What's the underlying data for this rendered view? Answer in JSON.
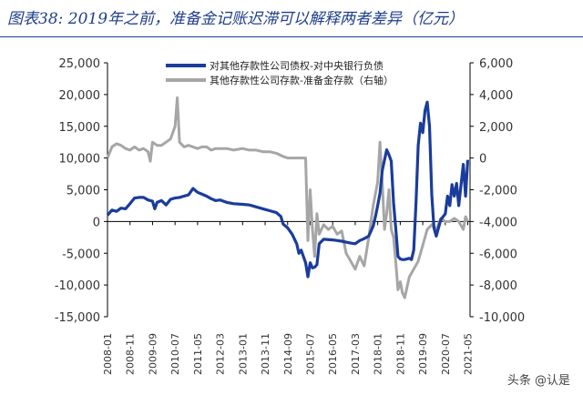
{
  "title": "图表38: 2019年之前，准备金记账迟滞可以解释两者差异（亿元）",
  "watermark": "头条 @认是",
  "chart_data": {
    "type": "line",
    "title": "图表38: 2019年之前，准备金记账迟滞可以解释两者差异（亿元）",
    "x_ticks": [
      "2008-01",
      "2008-11",
      "2009-09",
      "2010-07",
      "2011-05",
      "2012-03",
      "2013-01",
      "2013-11",
      "2014-09",
      "2015-07",
      "2016-05",
      "2017-03",
      "2018-01",
      "2018-11",
      "2019-09",
      "2020-07",
      "2021-05"
    ],
    "y_left": {
      "ticks": [
        "25,000",
        "20,000",
        "15,000",
        "10,000",
        "5,000",
        "0",
        "-5,000",
        "-10,000",
        "-15,000"
      ],
      "ylim": [
        -15000,
        25000
      ]
    },
    "y_right": {
      "ticks": [
        "6,000",
        "4,000",
        "2,000",
        "0",
        "-2,000",
        "-4,000",
        "-6,000",
        "-8,000",
        "-10,000"
      ],
      "ylim": [
        -10000,
        6000
      ]
    },
    "legend_position": "top-center",
    "grid": false,
    "series": [
      {
        "name": "对其他存款性公司债权-对中央银行负债",
        "axis": "left",
        "color": "#1a3c9c",
        "points": [
          [
            "2008-01",
            1000
          ],
          [
            "2008-03",
            1800
          ],
          [
            "2008-05",
            1600
          ],
          [
            "2008-07",
            2100
          ],
          [
            "2008-09",
            2000
          ],
          [
            "2008-11",
            2800
          ],
          [
            "2009-01",
            3700
          ],
          [
            "2009-03",
            3800
          ],
          [
            "2009-05",
            3800
          ],
          [
            "2009-07",
            3400
          ],
          [
            "2009-09",
            3200
          ],
          [
            "2009-10",
            2000
          ],
          [
            "2009-11",
            3000
          ],
          [
            "2010-01",
            3300
          ],
          [
            "2010-03",
            2600
          ],
          [
            "2010-05",
            3500
          ],
          [
            "2010-07",
            3700
          ],
          [
            "2010-09",
            3800
          ],
          [
            "2010-11",
            4000
          ],
          [
            "2011-01",
            4200
          ],
          [
            "2011-03",
            5200
          ],
          [
            "2011-05",
            4600
          ],
          [
            "2011-07",
            4300
          ],
          [
            "2011-09",
            4000
          ],
          [
            "2011-11",
            3600
          ],
          [
            "2012-01",
            3300
          ],
          [
            "2012-03",
            3400
          ],
          [
            "2012-06",
            3000
          ],
          [
            "2012-09",
            2800
          ],
          [
            "2013-01",
            2700
          ],
          [
            "2013-04",
            2600
          ],
          [
            "2013-07",
            2300
          ],
          [
            "2013-10",
            2000
          ],
          [
            "2014-01",
            1700
          ],
          [
            "2014-04",
            1400
          ],
          [
            "2014-06",
            800
          ],
          [
            "2014-07",
            -400
          ],
          [
            "2014-09",
            -1000
          ],
          [
            "2014-11",
            -2000
          ],
          [
            "2015-01",
            -3500
          ],
          [
            "2015-02",
            -5000
          ],
          [
            "2015-03",
            -4500
          ],
          [
            "2015-05",
            -6500
          ],
          [
            "2015-06",
            -8700
          ],
          [
            "2015-07",
            -6500
          ],
          [
            "2015-08",
            -7300
          ],
          [
            "2015-09",
            -7200
          ],
          [
            "2015-10",
            -6800
          ],
          [
            "2015-11",
            -3500
          ],
          [
            "2016-01",
            -2800
          ],
          [
            "2016-05",
            -2900
          ],
          [
            "2016-09",
            -3100
          ],
          [
            "2017-01",
            -3400
          ],
          [
            "2017-03",
            -3500
          ],
          [
            "2017-05",
            -3000
          ],
          [
            "2017-07",
            -2700
          ],
          [
            "2017-09",
            -2300
          ],
          [
            "2017-11",
            -700
          ],
          [
            "2017-12",
            800
          ],
          [
            "2018-01",
            2500
          ],
          [
            "2018-02",
            4400
          ],
          [
            "2018-03",
            8000
          ],
          [
            "2018-05",
            11300
          ],
          [
            "2018-06",
            10500
          ],
          [
            "2018-07",
            9500
          ],
          [
            "2018-08",
            3000
          ],
          [
            "2018-09",
            -1000
          ],
          [
            "2018-10",
            -5500
          ],
          [
            "2018-11",
            -5900
          ],
          [
            "2018-12",
            -6000
          ],
          [
            "2019-01",
            -6000
          ],
          [
            "2019-03",
            -5800
          ],
          [
            "2019-04",
            -6000
          ],
          [
            "2019-05",
            -4500
          ],
          [
            "2019-06",
            3000
          ],
          [
            "2019-07",
            12000
          ],
          [
            "2019-08",
            15500
          ],
          [
            "2019-09",
            14000
          ],
          [
            "2019-10",
            17500
          ],
          [
            "2019-11",
            18800
          ],
          [
            "2019-12",
            15000
          ],
          [
            "2020-01",
            4200
          ],
          [
            "2020-02",
            -1000
          ],
          [
            "2020-03",
            -2300
          ],
          [
            "2020-05",
            300
          ],
          [
            "2020-07",
            1200
          ],
          [
            "2020-08",
            4000
          ],
          [
            "2020-09",
            2500
          ],
          [
            "2020-10",
            5800
          ],
          [
            "2020-11",
            4000
          ],
          [
            "2020-12",
            6000
          ],
          [
            "2021-01",
            2500
          ],
          [
            "2021-03",
            9000
          ],
          [
            "2021-04",
            4000
          ],
          [
            "2021-05",
            9700
          ]
        ]
      },
      {
        "name": "其他存款性公司存款-准备金存款（右轴）",
        "axis": "right",
        "color": "#a6a6a6",
        "points": [
          [
            "2008-01",
            0
          ],
          [
            "2008-03",
            700
          ],
          [
            "2008-05",
            900
          ],
          [
            "2008-07",
            800
          ],
          [
            "2008-09",
            600
          ],
          [
            "2008-11",
            500
          ],
          [
            "2009-01",
            700
          ],
          [
            "2009-03",
            500
          ],
          [
            "2009-05",
            600
          ],
          [
            "2009-07",
            400
          ],
          [
            "2009-08",
            -200
          ],
          [
            "2009-09",
            1000
          ],
          [
            "2009-11",
            800
          ],
          [
            "2010-01",
            800
          ],
          [
            "2010-03",
            1000
          ],
          [
            "2010-05",
            1200
          ],
          [
            "2010-07",
            2000
          ],
          [
            "2010-08",
            3800
          ],
          [
            "2010-09",
            1000
          ],
          [
            "2010-11",
            700
          ],
          [
            "2011-01",
            800
          ],
          [
            "2011-03",
            700
          ],
          [
            "2011-05",
            600
          ],
          [
            "2011-07",
            700
          ],
          [
            "2011-09",
            700
          ],
          [
            "2011-11",
            500
          ],
          [
            "2012-01",
            600
          ],
          [
            "2012-03",
            600
          ],
          [
            "2012-06",
            600
          ],
          [
            "2012-09",
            500
          ],
          [
            "2013-01",
            600
          ],
          [
            "2013-04",
            500
          ],
          [
            "2013-07",
            500
          ],
          [
            "2013-10",
            400
          ],
          [
            "2014-01",
            400
          ],
          [
            "2014-04",
            300
          ],
          [
            "2014-07",
            100
          ],
          [
            "2014-09",
            0
          ],
          [
            "2015-01",
            0
          ],
          [
            "2015-03",
            0
          ],
          [
            "2015-05",
            0
          ],
          [
            "2015-06",
            -5200
          ],
          [
            "2015-07",
            -2000
          ],
          [
            "2015-08",
            -4500
          ],
          [
            "2015-09",
            -6200
          ],
          [
            "2015-10",
            -3500
          ],
          [
            "2015-11",
            -4800
          ],
          [
            "2016-01",
            -4200
          ],
          [
            "2016-03",
            -4500
          ],
          [
            "2016-05",
            -4300
          ],
          [
            "2016-07",
            -4800
          ],
          [
            "2016-09",
            -4600
          ],
          [
            "2016-11",
            -6000
          ],
          [
            "2017-01",
            -6500
          ],
          [
            "2017-03",
            -7000
          ],
          [
            "2017-05",
            -6200
          ],
          [
            "2017-07",
            -6800
          ],
          [
            "2017-09",
            -5000
          ],
          [
            "2017-11",
            -3000
          ],
          [
            "2018-01",
            -1500
          ],
          [
            "2018-02",
            1000
          ],
          [
            "2018-03",
            -1500
          ],
          [
            "2018-04",
            -4500
          ],
          [
            "2018-05",
            -3500
          ],
          [
            "2018-06",
            -2000
          ],
          [
            "2018-07",
            -4500
          ],
          [
            "2018-08",
            -5000
          ],
          [
            "2018-09",
            -6500
          ],
          [
            "2018-10",
            -8300
          ],
          [
            "2018-11",
            -7800
          ],
          [
            "2018-12",
            -8500
          ],
          [
            "2019-01",
            -8800
          ],
          [
            "2019-03",
            -7500
          ],
          [
            "2019-05",
            -7000
          ],
          [
            "2019-07",
            -6500
          ],
          [
            "2019-09",
            -5500
          ],
          [
            "2019-11",
            -4500
          ],
          [
            "2020-01",
            -4200
          ],
          [
            "2020-03",
            -4500
          ],
          [
            "2020-05",
            -3800
          ],
          [
            "2020-07",
            -4000
          ],
          [
            "2020-09",
            -4000
          ],
          [
            "2020-11",
            -3800
          ],
          [
            "2021-01",
            -4000
          ],
          [
            "2021-03",
            -4500
          ],
          [
            "2021-04",
            -3700
          ],
          [
            "2021-05",
            -4000
          ]
        ]
      }
    ]
  }
}
